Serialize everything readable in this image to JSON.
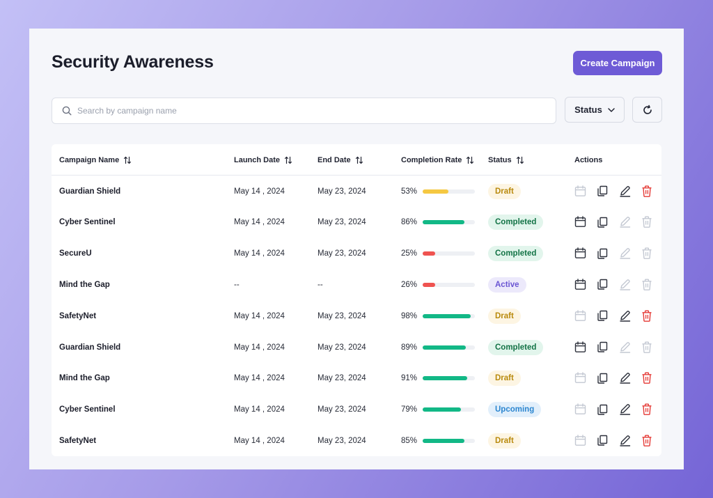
{
  "header": {
    "title": "Security Awareness",
    "create_label": "Create Campaign"
  },
  "search": {
    "placeholder": "Search by campaign name",
    "value": ""
  },
  "filters": {
    "status_label": "Status",
    "refresh_icon": "refresh-icon"
  },
  "table": {
    "columns": [
      "Campaign Name",
      "Launch Date",
      "End Date",
      "Completion Rate",
      "Status",
      "Actions"
    ],
    "rows": [
      {
        "name": "Guardian Shield",
        "launch": "May 14 , 2024",
        "end": "May 23, 2024",
        "rate": "53%",
        "rate_value": 53,
        "bar_color": "#f5c842",
        "status": "Draft",
        "status_kind": "draft",
        "actions": {
          "schedule": false,
          "copy": true,
          "edit": true,
          "delete": true
        }
      },
      {
        "name": "Cyber Sentinel",
        "launch": "May 14 , 2024",
        "end": "May 23, 2024",
        "rate": "86%",
        "rate_value": 86,
        "bar_color": "#12b886",
        "status": "Completed",
        "status_kind": "completed",
        "actions": {
          "schedule": true,
          "copy": true,
          "edit": false,
          "delete": false
        }
      },
      {
        "name": "SecureU",
        "launch": "May 14 , 2024",
        "end": "May 23, 2024",
        "rate": "25%",
        "rate_value": 25,
        "bar_color": "#ef5350",
        "status": "Completed",
        "status_kind": "completed",
        "actions": {
          "schedule": true,
          "copy": true,
          "edit": false,
          "delete": false
        }
      },
      {
        "name": "Mind the Gap",
        "launch": "--",
        "end": "--",
        "rate": "26%",
        "rate_value": 26,
        "bar_color": "#ef5350",
        "status": "Active",
        "status_kind": "active",
        "actions": {
          "schedule": true,
          "copy": true,
          "edit": false,
          "delete": false
        }
      },
      {
        "name": "SafetyNet",
        "launch": "May 14 , 2024",
        "end": "May 23, 2024",
        "rate": "98%",
        "rate_value": 98,
        "bar_color": "#12b886",
        "status": "Draft",
        "status_kind": "draft",
        "actions": {
          "schedule": false,
          "copy": true,
          "edit": true,
          "delete": true
        }
      },
      {
        "name": "Guardian Shield",
        "launch": "May 14 , 2024",
        "end": "May 23, 2024",
        "rate": "89%",
        "rate_value": 89,
        "bar_color": "#12b886",
        "status": "Completed",
        "status_kind": "completed",
        "actions": {
          "schedule": true,
          "copy": true,
          "edit": false,
          "delete": false
        }
      },
      {
        "name": "Mind the Gap",
        "launch": "May 14 , 2024",
        "end": "May 23, 2024",
        "rate": "91%",
        "rate_value": 91,
        "bar_color": "#12b886",
        "status": "Draft",
        "status_kind": "draft",
        "actions": {
          "schedule": false,
          "copy": true,
          "edit": true,
          "delete": true
        }
      },
      {
        "name": "Cyber Sentinel",
        "launch": "May 14 , 2024",
        "end": "May 23, 2024",
        "rate": "79%",
        "rate_value": 79,
        "bar_color": "#12b886",
        "status": "Upcoming",
        "status_kind": "upcoming",
        "actions": {
          "schedule": false,
          "copy": true,
          "edit": true,
          "delete": true
        }
      },
      {
        "name": "SafetyNet",
        "launch": "May 14 , 2024",
        "end": "May 23, 2024",
        "rate": "85%",
        "rate_value": 85,
        "bar_color": "#12b886",
        "status": "Draft",
        "status_kind": "draft",
        "actions": {
          "schedule": false,
          "copy": true,
          "edit": true,
          "delete": true
        }
      }
    ]
  },
  "colors": {
    "accent": "#6e5bd6",
    "icon_enabled": "#2b2f3a",
    "icon_disabled": "#c3c8d2",
    "delete": "#e53935"
  }
}
